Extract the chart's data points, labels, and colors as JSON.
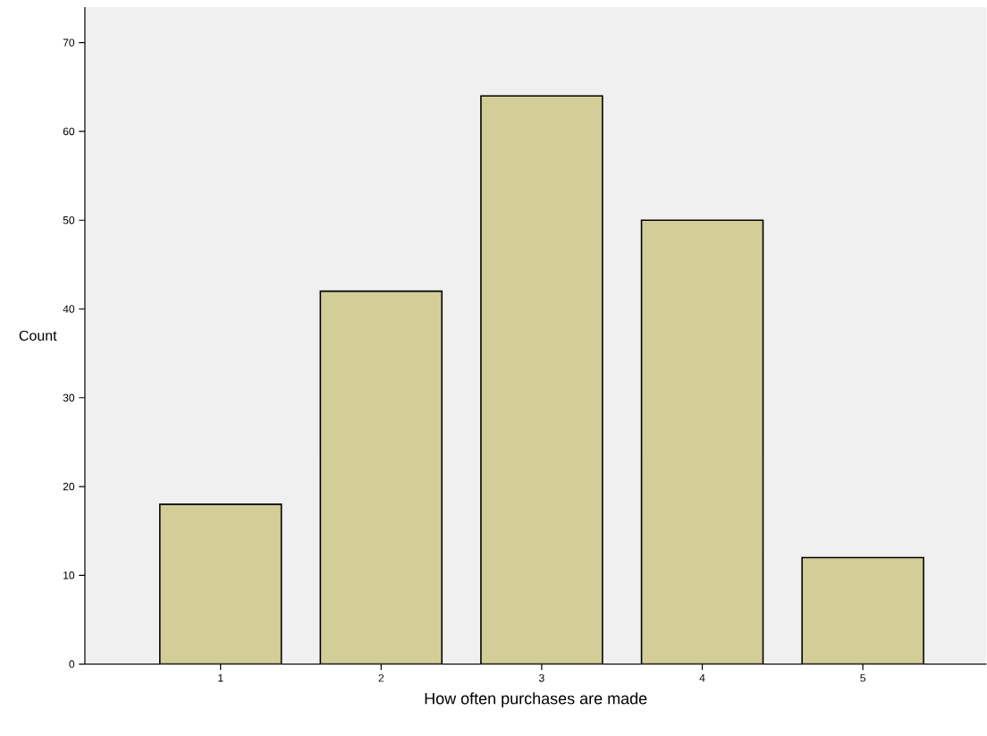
{
  "chart_data": {
    "type": "bar",
    "xlabel": "How often purchases are made",
    "ylabel": "Count",
    "categories": [
      "1",
      "2",
      "3",
      "4",
      "5"
    ],
    "values": [
      18,
      42,
      64,
      50,
      12
    ],
    "color": "#d3ce97",
    "ylim": [
      0,
      74
    ],
    "yticks": [
      0,
      10,
      20,
      30,
      40,
      50,
      60,
      70
    ]
  }
}
